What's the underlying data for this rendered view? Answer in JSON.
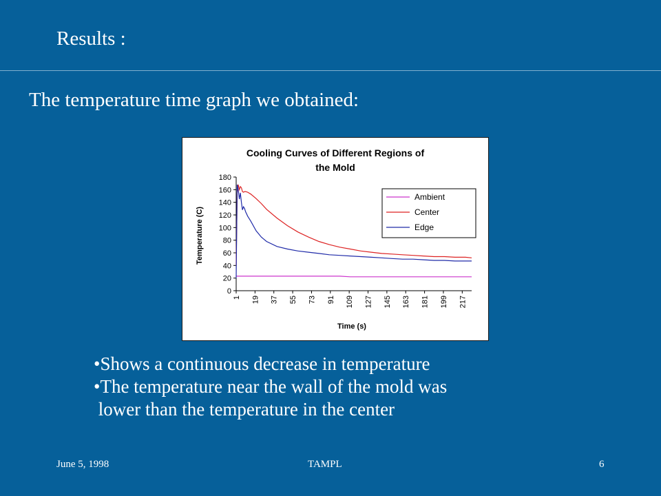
{
  "slide": {
    "title": "Results :",
    "subtitle": "The temperature time graph we obtained:",
    "bullets": [
      "•Shows a continuous decrease in temperature",
      "•The temperature near the wall of the mold was",
      " lower than the temperature in the center"
    ],
    "footer": {
      "date": "June 5, 1998",
      "center": "TAMPL",
      "page": "6"
    }
  },
  "colors": {
    "background": "#06609a",
    "ambient": "#cc33cc",
    "center": "#dd2222",
    "edge": "#1f2aa8"
  },
  "chart_data": {
    "type": "line",
    "title_lines": [
      "Cooling Curves of Different Regions of",
      "the Mold"
    ],
    "xlabel": "Time (s)",
    "ylabel": "Temperature (C)",
    "ylim": [
      0,
      180
    ],
    "yticks": [
      0,
      20,
      40,
      60,
      80,
      100,
      120,
      140,
      160,
      180
    ],
    "xlim": [
      1,
      226
    ],
    "xticks": [
      1,
      19,
      37,
      55,
      73,
      91,
      109,
      127,
      145,
      163,
      181,
      199,
      217
    ],
    "grid": false,
    "legend": "top-right",
    "series": [
      {
        "name": "Ambient",
        "color": "#cc33cc",
        "x": [
          1,
          20,
          40,
          60,
          80,
          100,
          110,
          130,
          150,
          170,
          190,
          210,
          226
        ],
        "y": [
          23,
          23,
          23,
          23,
          23,
          23,
          22,
          22,
          22,
          22,
          22,
          22,
          22
        ]
      },
      {
        "name": "Center",
        "color": "#dd2222",
        "x": [
          1,
          2,
          3,
          4,
          5,
          6,
          7,
          8,
          9,
          10,
          12,
          15,
          20,
          25,
          30,
          40,
          50,
          60,
          70,
          80,
          90,
          100,
          110,
          120,
          130,
          140,
          150,
          160,
          170,
          180,
          190,
          200,
          210,
          220,
          226
        ],
        "y": [
          40,
          155,
          168,
          160,
          165,
          163,
          157,
          156,
          157,
          157,
          156,
          153,
          146,
          138,
          129,
          115,
          103,
          93,
          85,
          78,
          73,
          69,
          66,
          63,
          61,
          59,
          58,
          57,
          56,
          55,
          54,
          54,
          53,
          53,
          52
        ]
      },
      {
        "name": "Edge",
        "color": "#1f2aa8",
        "x": [
          1,
          2,
          3,
          4,
          5,
          6,
          7,
          8,
          9,
          10,
          12,
          15,
          20,
          25,
          30,
          40,
          50,
          60,
          70,
          80,
          90,
          100,
          110,
          120,
          130,
          140,
          150,
          160,
          170,
          180,
          190,
          200,
          210,
          220,
          226
        ],
        "y": [
          20,
          168,
          160,
          145,
          155,
          140,
          128,
          133,
          130,
          125,
          118,
          110,
          95,
          85,
          78,
          70,
          66,
          63,
          61,
          59,
          57,
          56,
          55,
          54,
          53,
          52,
          51,
          50,
          50,
          49,
          48,
          48,
          47,
          47,
          47
        ]
      }
    ]
  }
}
